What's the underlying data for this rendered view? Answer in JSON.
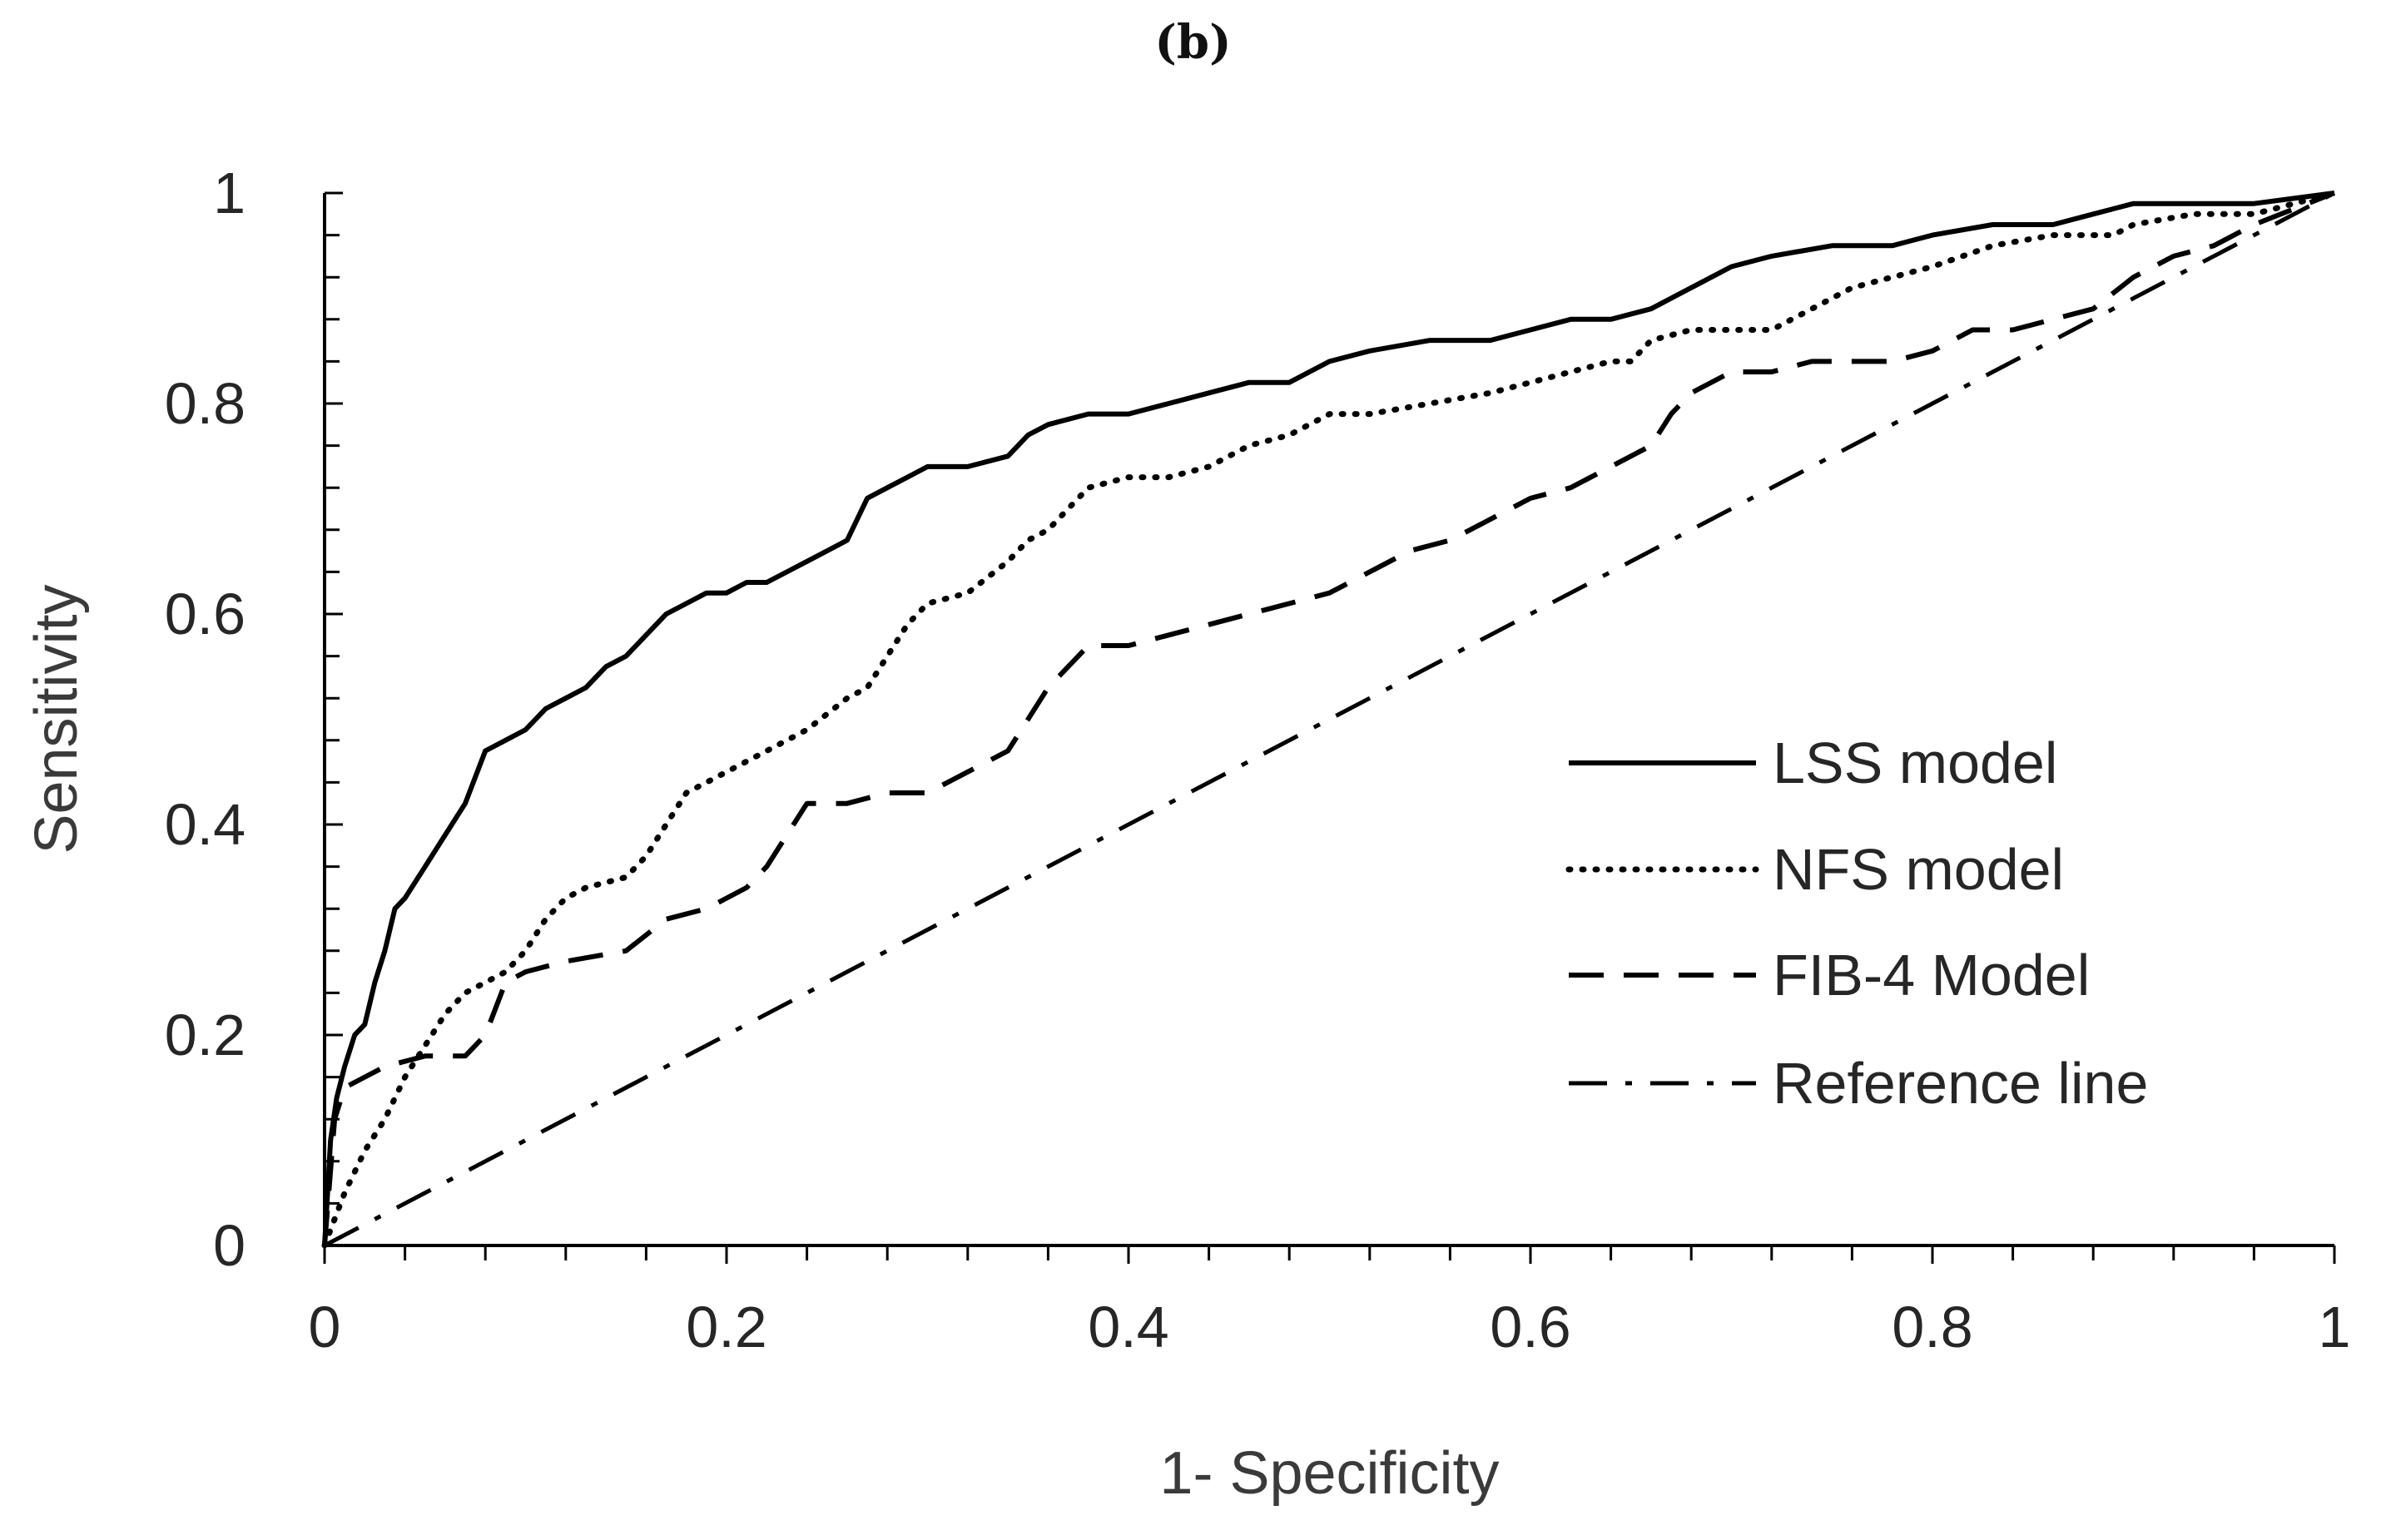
{
  "figure_label": "(b)",
  "chart_data": {
    "type": "line",
    "title": "(b)",
    "xlabel": "1- Specificity",
    "ylabel": "Sensitivity",
    "xlim": [
      0,
      1
    ],
    "ylim": [
      0,
      1
    ],
    "x_ticks": [
      "0",
      "0.2",
      "0.4",
      "0.6",
      "0.8",
      "1"
    ],
    "y_ticks": [
      "0",
      "0.2",
      "0.4",
      "0.6",
      "0.8",
      "1"
    ],
    "legend_position": "bottom-right",
    "series": [
      {
        "name": "LSS model",
        "style": "solid",
        "x": [
          0,
          0.003,
          0.006,
          0.01,
          0.015,
          0.02,
          0.025,
          0.03,
          0.035,
          0.04,
          0.05,
          0.06,
          0.07,
          0.08,
          0.09,
          0.1,
          0.11,
          0.12,
          0.13,
          0.14,
          0.15,
          0.16,
          0.17,
          0.18,
          0.19,
          0.2,
          0.21,
          0.22,
          0.23,
          0.24,
          0.25,
          0.26,
          0.27,
          0.28,
          0.29,
          0.3,
          0.32,
          0.34,
          0.35,
          0.36,
          0.38,
          0.4,
          0.42,
          0.44,
          0.46,
          0.48,
          0.5,
          0.52,
          0.55,
          0.58,
          0.6,
          0.62,
          0.64,
          0.66,
          0.68,
          0.7,
          0.72,
          0.75,
          0.78,
          0.8,
          0.83,
          0.86,
          0.88,
          0.9,
          0.93,
          0.96,
          1.0
        ],
        "y": [
          0,
          0.1,
          0.14,
          0.17,
          0.2,
          0.21,
          0.25,
          0.28,
          0.32,
          0.33,
          0.36,
          0.39,
          0.42,
          0.47,
          0.48,
          0.49,
          0.51,
          0.52,
          0.53,
          0.55,
          0.56,
          0.58,
          0.6,
          0.61,
          0.62,
          0.62,
          0.63,
          0.63,
          0.64,
          0.65,
          0.66,
          0.67,
          0.71,
          0.72,
          0.73,
          0.74,
          0.74,
          0.75,
          0.77,
          0.78,
          0.79,
          0.79,
          0.8,
          0.81,
          0.82,
          0.82,
          0.84,
          0.85,
          0.86,
          0.86,
          0.87,
          0.88,
          0.88,
          0.89,
          0.91,
          0.93,
          0.94,
          0.95,
          0.95,
          0.96,
          0.97,
          0.97,
          0.98,
          0.99,
          0.99,
          0.99,
          1.0
        ]
      },
      {
        "name": "NFS model",
        "style": "dotted",
        "x": [
          0,
          0.01,
          0.02,
          0.03,
          0.04,
          0.05,
          0.06,
          0.07,
          0.08,
          0.09,
          0.1,
          0.11,
          0.12,
          0.13,
          0.15,
          0.16,
          0.17,
          0.18,
          0.19,
          0.2,
          0.22,
          0.24,
          0.26,
          0.27,
          0.28,
          0.29,
          0.3,
          0.32,
          0.34,
          0.35,
          0.36,
          0.37,
          0.38,
          0.4,
          0.42,
          0.44,
          0.46,
          0.48,
          0.5,
          0.52,
          0.55,
          0.58,
          0.6,
          0.62,
          0.64,
          0.65,
          0.66,
          0.68,
          0.7,
          0.72,
          0.74,
          0.76,
          0.78,
          0.8,
          0.83,
          0.86,
          0.89,
          0.9,
          0.93,
          0.96,
          1.0
        ],
        "y": [
          0,
          0.05,
          0.09,
          0.12,
          0.16,
          0.19,
          0.22,
          0.24,
          0.25,
          0.26,
          0.28,
          0.31,
          0.33,
          0.34,
          0.35,
          0.37,
          0.4,
          0.43,
          0.44,
          0.45,
          0.47,
          0.49,
          0.52,
          0.53,
          0.56,
          0.59,
          0.61,
          0.62,
          0.65,
          0.67,
          0.68,
          0.7,
          0.72,
          0.73,
          0.73,
          0.74,
          0.76,
          0.77,
          0.79,
          0.79,
          0.8,
          0.81,
          0.82,
          0.83,
          0.84,
          0.84,
          0.86,
          0.87,
          0.87,
          0.87,
          0.89,
          0.91,
          0.92,
          0.93,
          0.95,
          0.96,
          0.96,
          0.97,
          0.98,
          0.98,
          1.0
        ]
      },
      {
        "name": "FIB-4 Model",
        "style": "dashed",
        "x": [
          0,
          0.005,
          0.01,
          0.02,
          0.03,
          0.05,
          0.07,
          0.08,
          0.09,
          0.1,
          0.12,
          0.15,
          0.17,
          0.19,
          0.21,
          0.22,
          0.23,
          0.24,
          0.26,
          0.28,
          0.3,
          0.32,
          0.34,
          0.35,
          0.36,
          0.37,
          0.38,
          0.4,
          0.42,
          0.44,
          0.46,
          0.48,
          0.5,
          0.52,
          0.54,
          0.56,
          0.58,
          0.6,
          0.62,
          0.64,
          0.66,
          0.67,
          0.68,
          0.7,
          0.72,
          0.74,
          0.76,
          0.78,
          0.8,
          0.82,
          0.84,
          0.86,
          0.88,
          0.9,
          0.92,
          0.94,
          0.96,
          1.0
        ],
        "y": [
          0,
          0.12,
          0.15,
          0.16,
          0.17,
          0.18,
          0.18,
          0.2,
          0.25,
          0.26,
          0.27,
          0.28,
          0.31,
          0.32,
          0.34,
          0.36,
          0.39,
          0.42,
          0.42,
          0.43,
          0.43,
          0.45,
          0.47,
          0.5,
          0.53,
          0.55,
          0.57,
          0.57,
          0.58,
          0.59,
          0.6,
          0.61,
          0.62,
          0.64,
          0.66,
          0.67,
          0.69,
          0.71,
          0.72,
          0.74,
          0.76,
          0.79,
          0.81,
          0.83,
          0.83,
          0.84,
          0.84,
          0.84,
          0.85,
          0.87,
          0.87,
          0.88,
          0.89,
          0.92,
          0.94,
          0.95,
          0.97,
          1.0
        ]
      },
      {
        "name": "Reference line",
        "style": "dashdot",
        "x": [
          0,
          1
        ],
        "y": [
          0,
          1
        ]
      }
    ]
  }
}
